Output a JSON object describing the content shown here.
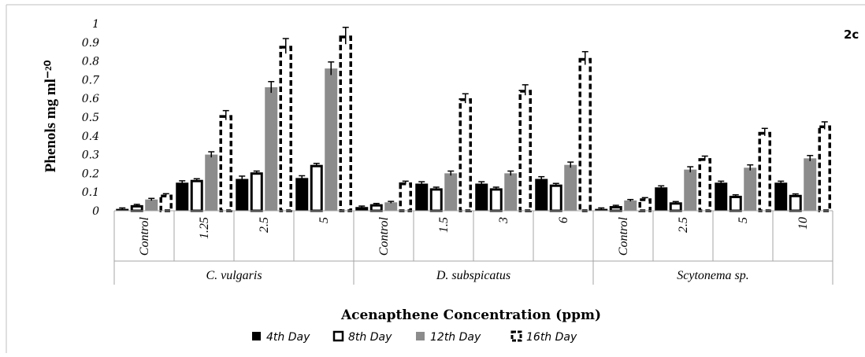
{
  "chart_data": {
    "type": "bar",
    "panel_label": "2c",
    "ylabel": "Phenols mg ml⁻²⁰",
    "xlabel": "Acenapthene Concentration (ppm)",
    "ylim": [
      0,
      1
    ],
    "yticks": [
      "0",
      "0.1",
      "0.2",
      "0.3",
      "0.4",
      "0.5",
      "0.6",
      "0.7",
      "0.8",
      "0.9",
      "1"
    ],
    "grid": false,
    "legend_position": "bottom",
    "groups": [
      {
        "name": "C. vulgaris",
        "categories": [
          "Control",
          "1.25",
          "2.5",
          "5"
        ]
      },
      {
        "name": "D. subspicatus",
        "categories": [
          "Control",
          "1.5",
          "3",
          "6"
        ]
      },
      {
        "name": "Scytonema sp.",
        "categories": [
          "Control",
          "2.5",
          "5",
          "10"
        ]
      }
    ],
    "series": [
      {
        "name": "4th Day",
        "fill": "#000000",
        "style": "solid",
        "values": [
          0.01,
          0.15,
          0.17,
          0.175,
          0.02,
          0.145,
          0.145,
          0.17,
          0.01,
          0.125,
          0.15,
          0.15
        ],
        "errors": [
          0.005,
          0.01,
          0.015,
          0.012,
          0.005,
          0.01,
          0.01,
          0.012,
          0.005,
          0.008,
          0.008,
          0.008
        ]
      },
      {
        "name": "8th Day",
        "fill": "#ffffff",
        "style": "outline",
        "values": [
          0.03,
          0.165,
          0.205,
          0.245,
          0.035,
          0.12,
          0.12,
          0.14,
          0.025,
          0.045,
          0.08,
          0.085
        ],
        "errors": [
          0.004,
          0.006,
          0.007,
          0.008,
          0.004,
          0.006,
          0.006,
          0.006,
          0.004,
          0.004,
          0.005,
          0.005
        ]
      },
      {
        "name": "12th Day",
        "fill": "#8c8c8c",
        "style": "solid",
        "values": [
          0.06,
          0.3,
          0.66,
          0.76,
          0.045,
          0.2,
          0.2,
          0.245,
          0.055,
          0.22,
          0.23,
          0.28
        ],
        "errors": [
          0.006,
          0.015,
          0.03,
          0.035,
          0.005,
          0.012,
          0.012,
          0.015,
          0.005,
          0.015,
          0.015,
          0.015
        ]
      },
      {
        "name": "16th Day",
        "fill": "#ffffff",
        "style": "dashed",
        "values": [
          0.085,
          0.51,
          0.88,
          0.935,
          0.15,
          0.6,
          0.645,
          0.815,
          0.065,
          0.28,
          0.42,
          0.455
        ],
        "errors": [
          0.006,
          0.025,
          0.04,
          0.045,
          0.008,
          0.025,
          0.028,
          0.035,
          0.005,
          0.012,
          0.02,
          0.02
        ]
      }
    ]
  }
}
